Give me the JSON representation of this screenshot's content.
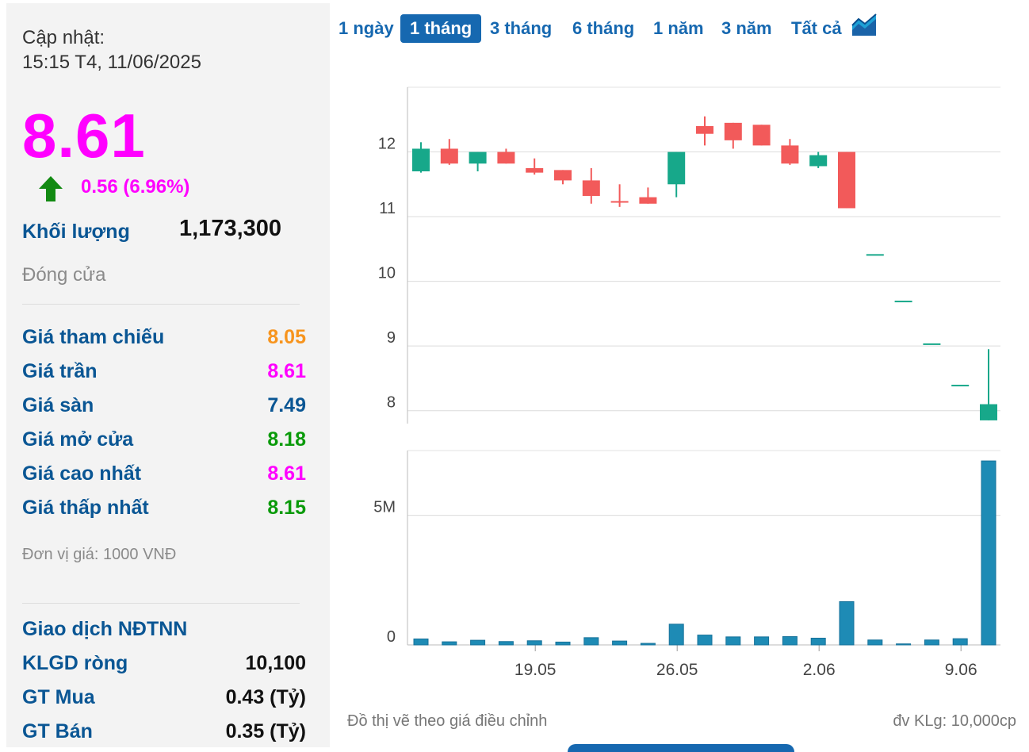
{
  "summary": {
    "updated_label": "Cập nhật:",
    "updated_time": "15:15 T4, 11/06/2025",
    "price": "8.61",
    "change": "0.56 (6.96%)",
    "volume_label": "Khối lượng",
    "volume": "1,173,300",
    "status": "Đóng cửa"
  },
  "prices": [
    {
      "label": "Giá tham chiếu",
      "value": "8.05",
      "color": "#f7941d"
    },
    {
      "label": "Giá trần",
      "value": "8.61",
      "color": "#ff00ff"
    },
    {
      "label": "Giá sàn",
      "value": "7.49",
      "color": "#0a5694"
    },
    {
      "label": "Giá mở cửa",
      "value": "8.18",
      "color": "#0a9a0a"
    },
    {
      "label": "Giá cao nhất",
      "value": "8.61",
      "color": "#ff00ff"
    },
    {
      "label": "Giá thấp nhất",
      "value": "8.15",
      "color": "#0a9a0a"
    }
  ],
  "unit_note": "Đơn vị giá: 1000 VNĐ",
  "foreign": {
    "title": "Giao dịch NĐTNN",
    "rows": [
      {
        "label": "KLGD ròng",
        "value": "10,100"
      },
      {
        "label": "GT Mua",
        "value": "0.43 (Tỷ)"
      },
      {
        "label": "GT Bán",
        "value": "0.35 (Tỷ)"
      }
    ]
  },
  "tabs": [
    {
      "label": "1 ngày",
      "active": false
    },
    {
      "label": "1 tháng",
      "active": true
    },
    {
      "label": "3 tháng",
      "active": false
    },
    {
      "label": "6 tháng",
      "active": false
    },
    {
      "label": "1 năm",
      "active": false
    },
    {
      "label": "3 năm",
      "active": false
    },
    {
      "label": "Tất cả",
      "active": false
    }
  ],
  "chart_icon": "area-chart-icon",
  "footer": {
    "left_note": "Đồ thị vẽ theo giá điều chỉnh",
    "right_note": "đv KLg: 10,000cp"
  },
  "colors": {
    "up": "#17a88a",
    "down": "#f25a5a",
    "volume": "#1e8bb5"
  },
  "chart_data": {
    "type": "candlestick",
    "price_axis": {
      "ticks": [
        8,
        9,
        10,
        11,
        12
      ],
      "range": [
        7.8,
        13
      ]
    },
    "volume_axis": {
      "tick_labels": [
        "0",
        "5M"
      ],
      "tick_values": [
        0,
        5000000
      ],
      "range": [
        0,
        7500000
      ]
    },
    "x_tick_labels": [
      {
        "label": "19.05",
        "index": 4
      },
      {
        "label": "26.05",
        "index": 9
      },
      {
        "label": "2.06",
        "index": 14
      },
      {
        "label": "9.06",
        "index": 19
      }
    ],
    "candles": [
      {
        "open": 11.7,
        "high": 12.15,
        "low": 11.68,
        "close": 12.05,
        "volume": 230000
      },
      {
        "open": 12.05,
        "high": 12.2,
        "low": 11.8,
        "close": 11.82,
        "volume": 120000
      },
      {
        "open": 11.82,
        "high": 12.0,
        "low": 11.7,
        "close": 12.0,
        "volume": 180000
      },
      {
        "open": 12.0,
        "high": 12.05,
        "low": 11.82,
        "close": 11.82,
        "volume": 130000
      },
      {
        "open": 11.75,
        "high": 11.9,
        "low": 11.65,
        "close": 11.68,
        "volume": 160000
      },
      {
        "open": 11.72,
        "high": 11.72,
        "low": 11.5,
        "close": 11.56,
        "volume": 110000
      },
      {
        "open": 11.56,
        "high": 11.75,
        "low": 11.2,
        "close": 11.32,
        "volume": 280000
      },
      {
        "open": 11.24,
        "high": 11.5,
        "low": 11.15,
        "close": 11.22,
        "volume": 150000
      },
      {
        "open": 11.3,
        "high": 11.45,
        "low": 11.2,
        "close": 11.2,
        "volume": 60000
      },
      {
        "open": 11.5,
        "high": 12.0,
        "low": 11.3,
        "close": 12.0,
        "volume": 800000
      },
      {
        "open": 12.4,
        "high": 12.55,
        "low": 12.1,
        "close": 12.28,
        "volume": 380000
      },
      {
        "open": 12.45,
        "high": 12.45,
        "low": 12.05,
        "close": 12.18,
        "volume": 310000
      },
      {
        "open": 12.42,
        "high": 12.42,
        "low": 12.1,
        "close": 12.1,
        "volume": 310000
      },
      {
        "open": 12.1,
        "high": 12.2,
        "low": 11.8,
        "close": 11.82,
        "volume": 320000
      },
      {
        "open": 11.78,
        "high": 12.0,
        "low": 11.75,
        "close": 11.95,
        "volume": 260000
      },
      {
        "open": 12.0,
        "high": 12.0,
        "low": 11.13,
        "close": 11.13,
        "volume": 1670000
      },
      {
        "open": 10.42,
        "high": 10.42,
        "low": 10.42,
        "close": 10.42,
        "volume": 190000
      },
      {
        "open": 9.7,
        "high": 9.7,
        "low": 9.7,
        "close": 9.7,
        "volume": 40000
      },
      {
        "open": 9.04,
        "high": 9.04,
        "low": 9.04,
        "close": 9.04,
        "volume": 190000
      },
      {
        "open": 8.4,
        "high": 8.4,
        "low": 8.4,
        "close": 8.4,
        "volume": 240000
      },
      {
        "open": 7.85,
        "high": 8.95,
        "low": 7.85,
        "close": 8.1,
        "volume": 7100000
      }
    ]
  }
}
